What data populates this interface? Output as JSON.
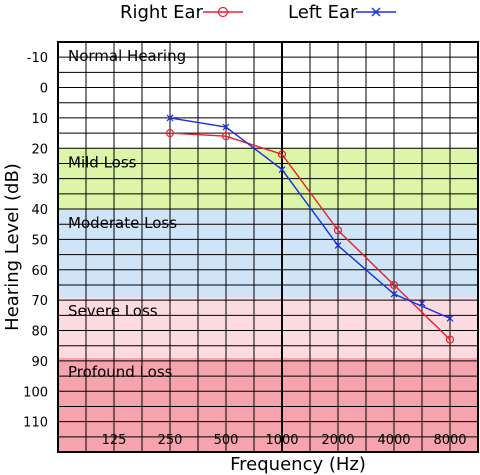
{
  "chart_data": {
    "type": "line",
    "xlabel": "Frequency (Hz)",
    "ylabel": "Hearing Level (dB)",
    "x_scale": "log2",
    "x_ticks": [
      125,
      250,
      500,
      1000,
      2000,
      4000,
      8000
    ],
    "x_tick_labels": [
      "125",
      "250",
      "500",
      "1000",
      "2000",
      "4000",
      "8000"
    ],
    "xlim": [
      62.5,
      11314
    ],
    "y_ticks": [
      -10,
      0,
      10,
      20,
      30,
      40,
      50,
      60,
      70,
      80,
      90,
      100,
      110
    ],
    "y_tick_labels": [
      "-10",
      "0",
      "10",
      "20",
      "30",
      "40",
      "50",
      "60",
      "70",
      "80",
      "90",
      "100",
      "110"
    ],
    "ylim": [
      -15,
      120
    ],
    "y_inverted": true,
    "grid": true,
    "legend_position": "top",
    "bands": [
      {
        "label": "Normal Hearing",
        "from": -15,
        "to": 20,
        "color": "#ffffff"
      },
      {
        "label": "Mild Loss",
        "from": 20,
        "to": 40,
        "color": "#ddf5a6"
      },
      {
        "label": "Moderate Loss",
        "from": 40,
        "to": 69,
        "color": "#cfe4f7"
      },
      {
        "label": "Severe Loss",
        "from": 69,
        "to": 89,
        "color": "#fcdbe0"
      },
      {
        "label": "Profound Loss",
        "from": 89,
        "to": 120,
        "color": "#f5a3ad"
      }
    ],
    "series": [
      {
        "name": "Right Ear",
        "marker": "circle",
        "color": "#e8202a",
        "x": [
          250,
          500,
          1000,
          2000,
          4000,
          8000
        ],
        "y": [
          15,
          16,
          22,
          47,
          65,
          83
        ]
      },
      {
        "name": "Left Ear",
        "marker": "x",
        "color": "#1a2fe0",
        "x": [
          250,
          500,
          1000,
          2000,
          4000,
          8000
        ],
        "y": [
          10,
          13,
          27,
          52,
          68,
          76
        ]
      }
    ],
    "extra_points": [
      {
        "series": "Left Ear",
        "x": 5657,
        "y": 71
      }
    ]
  }
}
